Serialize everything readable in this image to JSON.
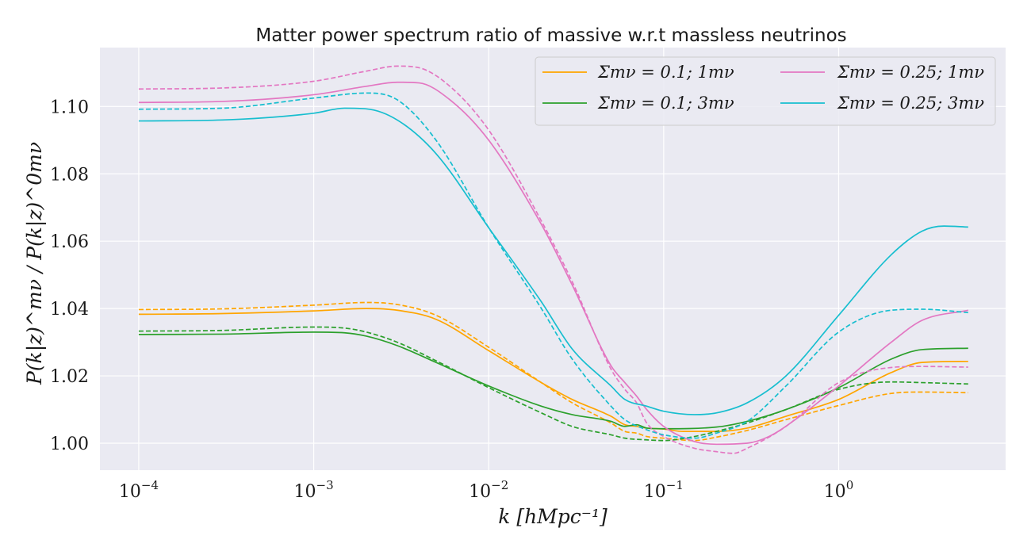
{
  "chart_data": {
    "type": "line",
    "title": "Matter power spectrum ratio of massive w.r.t massless neutrinos",
    "xlabel": "k [hMpc⁻¹]",
    "ylabel": "P(k|z)^mν / P(k|z)^0mν",
    "xscale": "log",
    "xlim": [
      6e-05,
      9
    ],
    "ylim": [
      0.992,
      1.1175
    ],
    "x_ticks": [
      {
        "value": 0.0001,
        "base": "10",
        "exp": "−4"
      },
      {
        "value": 0.001,
        "base": "10",
        "exp": "−3"
      },
      {
        "value": 0.01,
        "base": "10",
        "exp": "−2"
      },
      {
        "value": 0.1,
        "base": "10",
        "exp": "−1"
      },
      {
        "value": 1,
        "base": "10",
        "exp": "0"
      }
    ],
    "y_ticks": [
      {
        "value": 1.0,
        "label": "1.00"
      },
      {
        "value": 1.02,
        "label": "1.02"
      },
      {
        "value": 1.04,
        "label": "1.04"
      },
      {
        "value": 1.06,
        "label": "1.06"
      },
      {
        "value": 1.08,
        "label": "1.08"
      },
      {
        "value": 1.1,
        "label": "1.10"
      }
    ],
    "grid": true,
    "legend": {
      "placement": "top-right",
      "columns": 2
    },
    "series": [
      {
        "name": "Σmν = 0.1; 1mν",
        "color": "#ffa500",
        "dash": "solid",
        "in_legend": true,
        "points": [
          [
            0.0001,
            1.0383
          ],
          [
            0.0003,
            1.0385
          ],
          [
            0.001,
            1.0393
          ],
          [
            0.002,
            1.04
          ],
          [
            0.003,
            1.0395
          ],
          [
            0.005,
            1.0368
          ],
          [
            0.01,
            1.0275
          ],
          [
            0.02,
            1.018
          ],
          [
            0.03,
            1.013
          ],
          [
            0.05,
            1.008
          ],
          [
            0.06,
            1.0055
          ],
          [
            0.07,
            1.005
          ],
          [
            0.08,
            1.0045
          ],
          [
            0.1,
            1.0042
          ],
          [
            0.13,
            1.0035
          ],
          [
            0.2,
            1.0035
          ],
          [
            0.3,
            1.0045
          ],
          [
            0.5,
            1.008
          ],
          [
            1,
            1.013
          ],
          [
            2,
            1.021
          ],
          [
            3,
            1.024
          ],
          [
            5.5,
            1.0243
          ]
        ]
      },
      {
        "name": "Σmν = 0.1; 1mν (dashed)",
        "color": "#ffa500",
        "dash": "dashed",
        "in_legend": false,
        "points": [
          [
            0.0001,
            1.0397
          ],
          [
            0.0003,
            1.0399
          ],
          [
            0.001,
            1.041
          ],
          [
            0.002,
            1.0418
          ],
          [
            0.003,
            1.0412
          ],
          [
            0.005,
            1.038
          ],
          [
            0.01,
            1.0285
          ],
          [
            0.02,
            1.018
          ],
          [
            0.03,
            1.012
          ],
          [
            0.05,
            1.006
          ],
          [
            0.06,
            1.0035
          ],
          [
            0.07,
            1.003
          ],
          [
            0.08,
            1.002
          ],
          [
            0.1,
            1.0015
          ],
          [
            0.15,
            1.0008
          ],
          [
            0.2,
            1.0018
          ],
          [
            0.3,
            1.0038
          ],
          [
            0.5,
            1.007
          ],
          [
            1,
            1.0112
          ],
          [
            2,
            1.0148
          ],
          [
            3,
            1.0152
          ],
          [
            5.5,
            1.015
          ]
        ]
      },
      {
        "name": "Σmν = 0.1; 3mν",
        "color": "#2ca02c",
        "dash": "solid",
        "in_legend": true,
        "points": [
          [
            0.0001,
            1.0323
          ],
          [
            0.0003,
            1.0324
          ],
          [
            0.001,
            1.033
          ],
          [
            0.0015,
            1.0328
          ],
          [
            0.002,
            1.0318
          ],
          [
            0.003,
            1.029
          ],
          [
            0.005,
            1.024
          ],
          [
            0.01,
            1.017
          ],
          [
            0.02,
            1.011
          ],
          [
            0.03,
            1.0085
          ],
          [
            0.05,
            1.0065
          ],
          [
            0.06,
            1.005
          ],
          [
            0.07,
            1.0055
          ],
          [
            0.08,
            1.0045
          ],
          [
            0.1,
            1.0043
          ],
          [
            0.2,
            1.0048
          ],
          [
            0.3,
            1.0065
          ],
          [
            0.5,
            1.01
          ],
          [
            1,
            1.0165
          ],
          [
            2,
            1.025
          ],
          [
            3,
            1.0278
          ],
          [
            5.5,
            1.0282
          ]
        ]
      },
      {
        "name": "Σmν = 0.1; 3mν (dashed)",
        "color": "#2ca02c",
        "dash": "dashed",
        "in_legend": false,
        "points": [
          [
            0.0001,
            1.0333
          ],
          [
            0.0003,
            1.0335
          ],
          [
            0.001,
            1.0345
          ],
          [
            0.0015,
            1.0342
          ],
          [
            0.002,
            1.033
          ],
          [
            0.003,
            1.03
          ],
          [
            0.005,
            1.0245
          ],
          [
            0.01,
            1.0165
          ],
          [
            0.02,
            1.009
          ],
          [
            0.03,
            1.005
          ],
          [
            0.05,
            1.0025
          ],
          [
            0.06,
            1.0015
          ],
          [
            0.08,
            1.001
          ],
          [
            0.1,
            1.0008
          ],
          [
            0.15,
            1.002
          ],
          [
            0.2,
            1.0035
          ],
          [
            0.3,
            1.006
          ],
          [
            0.5,
            1.01
          ],
          [
            1,
            1.016
          ],
          [
            2,
            1.0182
          ],
          [
            3,
            1.018
          ],
          [
            5.5,
            1.0176
          ]
        ]
      },
      {
        "name": "Σmν = 0.25; 1mν",
        "color": "#e377c2",
        "dash": "solid",
        "in_legend": true,
        "points": [
          [
            0.0001,
            1.1012
          ],
          [
            0.0003,
            1.1015
          ],
          [
            0.001,
            1.1035
          ],
          [
            0.002,
            1.106
          ],
          [
            0.003,
            1.1072
          ],
          [
            0.004,
            1.107
          ],
          [
            0.006,
            1.102
          ],
          [
            0.01,
            1.09
          ],
          [
            0.02,
            1.065
          ],
          [
            0.03,
            1.047
          ],
          [
            0.05,
            1.023
          ],
          [
            0.06,
            1.018
          ],
          [
            0.07,
            1.014
          ],
          [
            0.08,
            1.01
          ],
          [
            0.1,
            1.005
          ],
          [
            0.15,
            1.0005
          ],
          [
            0.2,
            0.9997
          ],
          [
            0.3,
            1.0
          ],
          [
            0.4,
            1.002
          ],
          [
            0.6,
            1.008
          ],
          [
            1,
            1.017
          ],
          [
            2,
            1.03
          ],
          [
            3,
            1.0365
          ],
          [
            5.5,
            1.0395
          ]
        ]
      },
      {
        "name": "Σmν = 0.25; 1mν (dashed)",
        "color": "#e377c2",
        "dash": "dashed",
        "in_legend": false,
        "points": [
          [
            0.0001,
            1.1052
          ],
          [
            0.0003,
            1.1055
          ],
          [
            0.001,
            1.1075
          ],
          [
            0.002,
            1.1105
          ],
          [
            0.003,
            1.112
          ],
          [
            0.004,
            1.1115
          ],
          [
            0.006,
            1.106
          ],
          [
            0.01,
            1.093
          ],
          [
            0.02,
            1.066
          ],
          [
            0.03,
            1.048
          ],
          [
            0.05,
            1.022
          ],
          [
            0.06,
            1.016
          ],
          [
            0.07,
            1.012
          ],
          [
            0.08,
            1.006
          ],
          [
            0.1,
            1.002
          ],
          [
            0.15,
            0.9985
          ],
          [
            0.2,
            0.9975
          ],
          [
            0.25,
            0.997
          ],
          [
            0.3,
            0.9985
          ],
          [
            0.5,
            1.005
          ],
          [
            1,
            1.018
          ],
          [
            2,
            1.0225
          ],
          [
            3,
            1.0228
          ],
          [
            5.5,
            1.0226
          ]
        ]
      },
      {
        "name": "Σmν = 0.25; 3mν",
        "color": "#17becf",
        "dash": "solid",
        "in_legend": true,
        "points": [
          [
            0.0001,
            1.0957
          ],
          [
            0.0003,
            1.096
          ],
          [
            0.001,
            1.098
          ],
          [
            0.0015,
            1.0995
          ],
          [
            0.002,
            1.0993
          ],
          [
            0.003,
            1.096
          ],
          [
            0.005,
            1.086
          ],
          [
            0.01,
            1.064
          ],
          [
            0.02,
            1.042
          ],
          [
            0.03,
            1.028
          ],
          [
            0.05,
            1.017
          ],
          [
            0.06,
            1.013
          ],
          [
            0.08,
            1.011
          ],
          [
            0.1,
            1.0095
          ],
          [
            0.15,
            1.0085
          ],
          [
            0.2,
            1.009
          ],
          [
            0.3,
            1.012
          ],
          [
            0.5,
            1.02
          ],
          [
            1,
            1.038
          ],
          [
            2,
            1.056
          ],
          [
            3,
            1.063
          ],
          [
            4,
            1.0645
          ],
          [
            5.5,
            1.0642
          ]
        ]
      },
      {
        "name": "Σmν = 0.25; 3mν (dashed)",
        "color": "#17becf",
        "dash": "dashed",
        "in_legend": false,
        "points": [
          [
            0.0001,
            1.0992
          ],
          [
            0.0003,
            1.0995
          ],
          [
            0.001,
            1.1025
          ],
          [
            0.002,
            1.104
          ],
          [
            0.003,
            1.102
          ],
          [
            0.005,
            1.09
          ],
          [
            0.01,
            1.064
          ],
          [
            0.02,
            1.04
          ],
          [
            0.03,
            1.025
          ],
          [
            0.05,
            1.011
          ],
          [
            0.06,
            1.007
          ],
          [
            0.08,
            1.004
          ],
          [
            0.1,
            1.0025
          ],
          [
            0.15,
            1.0015
          ],
          [
            0.2,
            1.003
          ],
          [
            0.3,
            1.0065
          ],
          [
            0.5,
            1.017
          ],
          [
            1,
            1.033
          ],
          [
            2,
            1.0395
          ],
          [
            3,
            1.0398
          ],
          [
            5.5,
            1.0388
          ]
        ]
      }
    ]
  }
}
